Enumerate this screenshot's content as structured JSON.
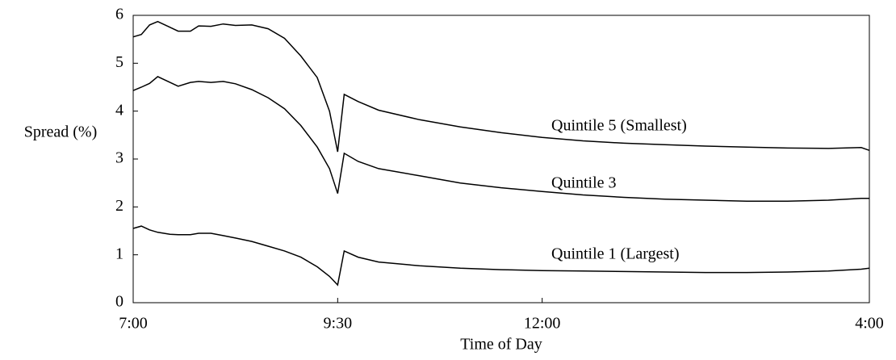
{
  "chart_data": {
    "type": "line",
    "x_label": "Time of Day",
    "y_label": "Spread (%)",
    "x": [
      7.0,
      7.1,
      7.2,
      7.3,
      7.45,
      7.55,
      7.7,
      7.8,
      7.95,
      8.1,
      8.25,
      8.45,
      8.65,
      8.85,
      9.05,
      9.25,
      9.4,
      9.5,
      9.58,
      9.75,
      10.0,
      10.5,
      11.0,
      11.5,
      12.0,
      12.5,
      13.0,
      13.5,
      14.0,
      14.5,
      15.0,
      15.5,
      15.9,
      16.0
    ],
    "series": [
      {
        "name": "Quintile 5 (Smallest)",
        "color": "#000000",
        "values": [
          5.55,
          5.6,
          5.8,
          5.87,
          5.75,
          5.67,
          5.67,
          5.78,
          5.77,
          5.82,
          5.79,
          5.8,
          5.72,
          5.52,
          5.15,
          4.7,
          4.0,
          3.15,
          4.35,
          4.2,
          4.02,
          3.82,
          3.67,
          3.55,
          3.45,
          3.38,
          3.33,
          3.3,
          3.27,
          3.25,
          3.23,
          3.22,
          3.24,
          3.18
        ]
      },
      {
        "name": "Quintile 3",
        "color": "#000000",
        "values": [
          4.43,
          4.5,
          4.58,
          4.72,
          4.6,
          4.52,
          4.6,
          4.62,
          4.6,
          4.62,
          4.57,
          4.45,
          4.28,
          4.05,
          3.7,
          3.25,
          2.8,
          2.28,
          3.12,
          2.95,
          2.8,
          2.65,
          2.5,
          2.4,
          2.32,
          2.25,
          2.2,
          2.16,
          2.14,
          2.12,
          2.12,
          2.14,
          2.18,
          2.18
        ]
      },
      {
        "name": "Quintile 1 (Largest)",
        "color": "#000000",
        "values": [
          1.55,
          1.6,
          1.52,
          1.47,
          1.43,
          1.42,
          1.42,
          1.45,
          1.45,
          1.4,
          1.35,
          1.28,
          1.18,
          1.08,
          0.95,
          0.75,
          0.55,
          0.37,
          1.08,
          0.95,
          0.85,
          0.77,
          0.72,
          0.69,
          0.67,
          0.66,
          0.65,
          0.64,
          0.63,
          0.63,
          0.64,
          0.66,
          0.7,
          0.72
        ]
      }
    ],
    "xlim": [
      7,
      16
    ],
    "xticks": [
      {
        "value": 7,
        "label": "7:00"
      },
      {
        "value": 9.5,
        "label": "9:30"
      },
      {
        "value": 12,
        "label": "12:00"
      },
      {
        "value": 16,
        "label": "4:00"
      }
    ],
    "ylim": [
      0,
      6
    ],
    "yticks": [
      0,
      1,
      2,
      3,
      4,
      5,
      6
    ],
    "grid": false
  }
}
